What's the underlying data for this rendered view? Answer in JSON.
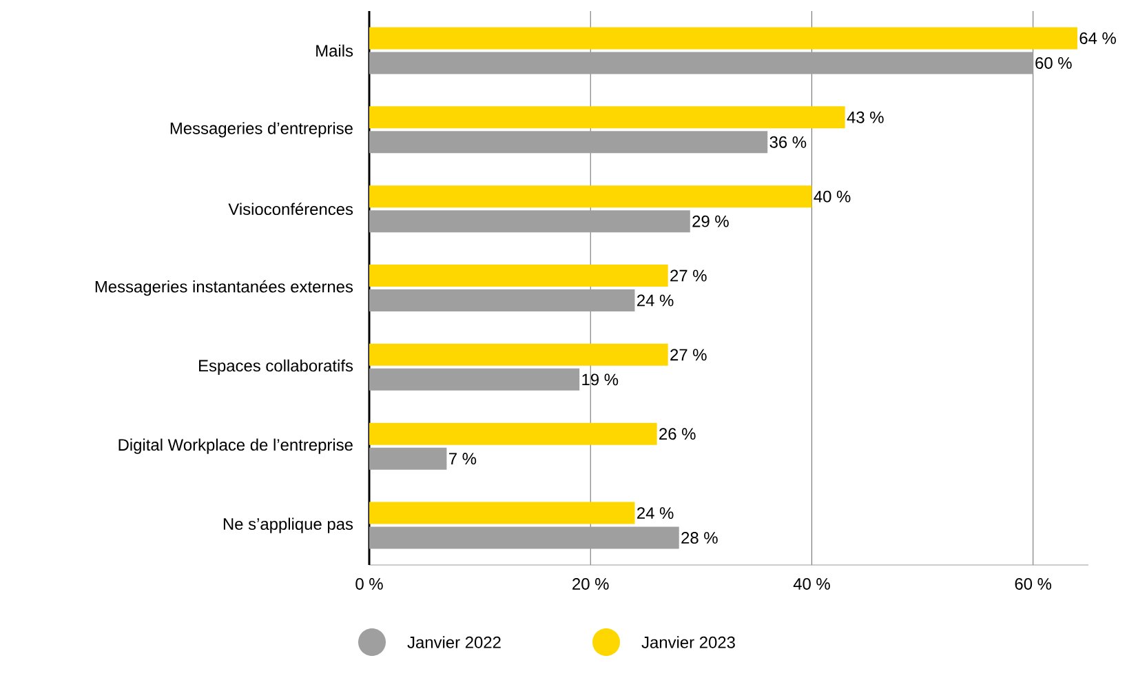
{
  "chart_data": {
    "type": "bar",
    "orientation": "horizontal",
    "categories": [
      "Mails",
      "Messageries d’entreprise",
      "Visioconférences",
      "Messageries instantanées externes",
      "Espaces collaboratifs",
      "Digital Workplace de l’entreprise",
      "Ne s’applique pas"
    ],
    "series": [
      {
        "name": "Janvier 2022",
        "color": "#a09f9f",
        "values": [
          60,
          36,
          29,
          24,
          19,
          7,
          28
        ],
        "value_labels": [
          "60 %",
          "36 %",
          "29 %",
          "24 %",
          "19 %",
          "7 %",
          "28 %"
        ]
      },
      {
        "name": "Janvier 2023",
        "color": "#fed700",
        "values": [
          64,
          43,
          40,
          27,
          27,
          26,
          24
        ],
        "value_labels": [
          "64 %",
          "43 %",
          "40 %",
          "27 %",
          "27 %",
          "26 %",
          "24 %"
        ]
      }
    ],
    "xlim": [
      0,
      65
    ],
    "xticks": [
      {
        "value": 0,
        "label": "0 %"
      },
      {
        "value": 20,
        "label": "20 %"
      },
      {
        "value": 40,
        "label": "40 %"
      },
      {
        "value": 60,
        "label": "60 %"
      }
    ],
    "grid": "x",
    "legend": "bottom"
  }
}
